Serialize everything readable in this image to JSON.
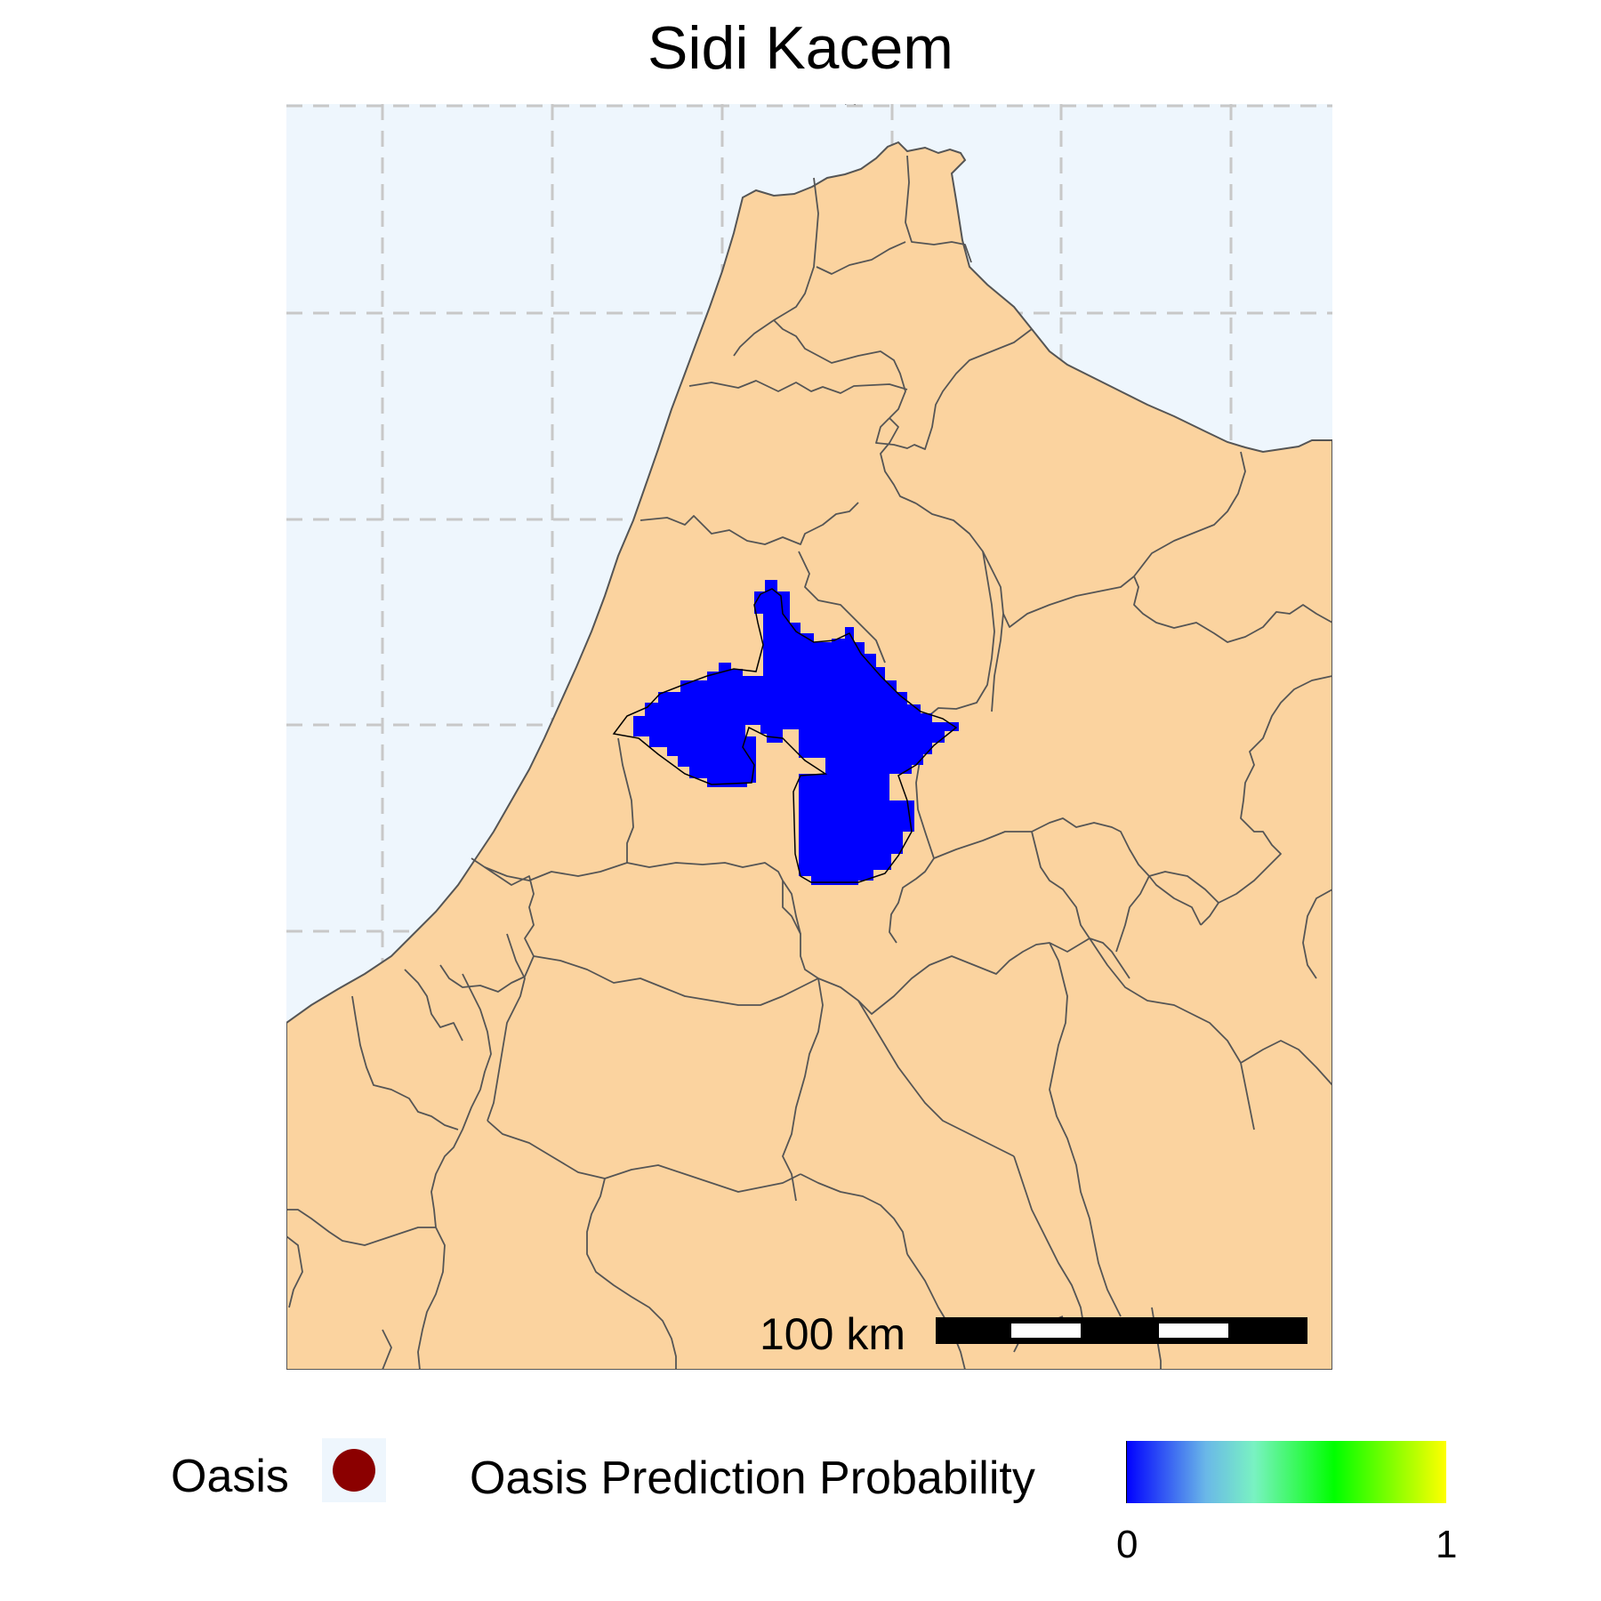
{
  "title": "Sidi Kacem",
  "map": {
    "ocean_color": "#eef6fd",
    "land_color": "#fbd39f",
    "border_color": "#555555",
    "grid_color": "#c8c8c8",
    "prediction_color": "#0000ff",
    "gridlines": "dashed"
  },
  "scale_bar": {
    "label": "100 km"
  },
  "legend": {
    "oasis_label": "Oasis",
    "oasis_color": "#8b0000",
    "probability_label": "Oasis Prediction Probability",
    "probability_min": "0",
    "probability_max": "1",
    "gradient_colors": [
      "#0000ff",
      "#79f2c2",
      "#00ff00",
      "#ffff00"
    ]
  }
}
